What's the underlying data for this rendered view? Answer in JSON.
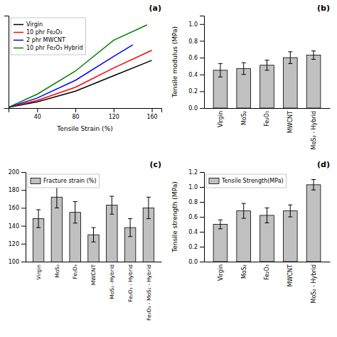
{
  "chart_data": [
    {
      "type": "line",
      "xlabel": "Tensile Strain (%)",
      "xlim": [
        10,
        170
      ],
      "xticks": [
        40,
        80,
        120,
        160
      ],
      "ylim": [
        0,
        1.2
      ],
      "tick_labels": "x",
      "legend": "upper left",
      "annotations": [
        "(a)"
      ],
      "series": [
        {
          "name": "Virgin",
          "color": "black",
          "x": [
            10,
            40,
            80,
            120,
            160
          ],
          "values": [
            0.01,
            0.08,
            0.22,
            0.42,
            0.62
          ]
        },
        {
          "name": "10 phr Fe₂O₃",
          "color": "red",
          "x": [
            10,
            40,
            80,
            120,
            160
          ],
          "values": [
            0.01,
            0.1,
            0.27,
            0.52,
            0.75
          ]
        },
        {
          "name": "2 phr MWCNT",
          "color": "blue",
          "x": [
            10,
            40,
            80,
            120,
            140
          ],
          "values": [
            0.01,
            0.13,
            0.36,
            0.67,
            0.82
          ]
        },
        {
          "name": "10 phr Fe₂O₃ Hybrid",
          "color": "green",
          "x": [
            10,
            40,
            80,
            120,
            155
          ],
          "values": [
            0.01,
            0.18,
            0.48,
            0.88,
            1.08
          ]
        }
      ]
    },
    {
      "type": "bar",
      "ylabel": "Tensile modulus (MPa)",
      "categories": [
        "Virgin",
        "MoS₂",
        "Fe₂O₃",
        "MWCNT",
        "MoS₂ - Hybrid"
      ],
      "values": [
        0.45,
        0.47,
        0.51,
        0.6,
        0.63
      ],
      "errors": [
        0.08,
        0.07,
        0.06,
        0.07,
        0.05
      ],
      "color": "#c0c0c0",
      "ylim": [
        0.0,
        1.1
      ],
      "yticks": [
        {
          "value": 0.0,
          "label": "0.0"
        },
        0.2,
        0.4,
        0.6,
        0.8,
        {
          "value": 1.0,
          "label": "1.0"
        }
      ],
      "annotations": [
        "(b)"
      ]
    },
    {
      "type": "bar",
      "categories": [
        "Virgin",
        "MoS₂",
        "Fe₂O₃",
        "MWCNT",
        "MoS₂ -Hybrid",
        "Fe₂O₃ - Hybrid",
        "Fe₂O₃ - MoS₂ - Hybrid"
      ],
      "series": [
        {
          "name": "Fracture strain (%)",
          "color": "#c0c0c0",
          "values": [
            148,
            172,
            155,
            130,
            163,
            138,
            160
          ],
          "errors": [
            10,
            12,
            12,
            8,
            10,
            10,
            12
          ]
        }
      ],
      "ylim": [
        100,
        200
      ],
      "yticks": [
        100,
        120,
        140,
        160,
        180,
        200
      ],
      "legend": "upper left",
      "annotations": [
        "(c)"
      ]
    },
    {
      "type": "bar",
      "ylabel": "Tensile strength (MPa)",
      "categories": [
        "Virgin",
        "MoS₂",
        "Fe₂O₃",
        "MWCNT",
        "MoS₂ - Hybrid"
      ],
      "series": [
        {
          "name": "Tensile Strength(MPa)",
          "color": "#c0c0c0",
          "values": [
            0.5,
            0.68,
            0.62,
            0.68,
            1.03
          ],
          "errors": [
            0.06,
            0.1,
            0.1,
            0.08,
            0.07
          ]
        }
      ],
      "ylim": [
        0.0,
        1.2
      ],
      "yticks": [
        {
          "value": 0.0,
          "label": "0.0"
        },
        0.2,
        0.4,
        0.6,
        0.8,
        {
          "value": 1.0,
          "label": "1.0"
        },
        1.2
      ],
      "legend": "upper left",
      "annotations": [
        "(d)"
      ]
    }
  ]
}
